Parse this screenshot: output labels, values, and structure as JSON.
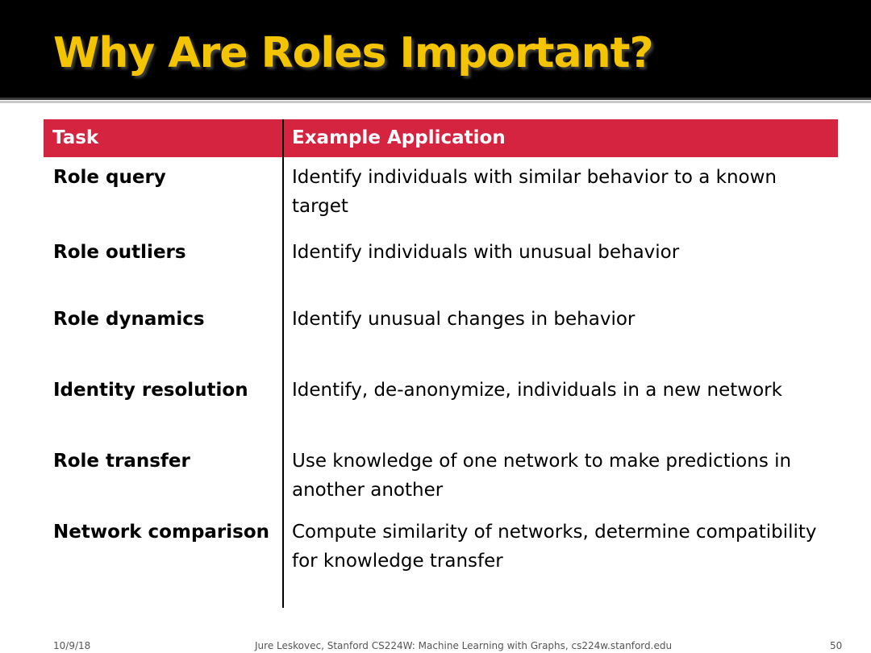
{
  "slide": {
    "title": "Why Are Roles Important?",
    "colors": {
      "title_text": "#f5c400",
      "title_bar": "#000000",
      "table_header": "#d42440"
    }
  },
  "table": {
    "headers": {
      "task": "Task",
      "application": "Example Application"
    },
    "rows": [
      {
        "task": "Role query",
        "application": "Identify individuals with similar behavior to a known target"
      },
      {
        "task": "Role outliers",
        "application": "Identify individuals with unusual behavior"
      },
      {
        "task": "Role dynamics",
        "application": "Identify unusual changes in behavior"
      },
      {
        "task": "Identity resolution",
        "application": "Identify, de-anonymize, individuals in a new network"
      },
      {
        "task": "Role transfer",
        "application": "Use knowledge of one network to make predictions in another another"
      },
      {
        "task": "Network comparison",
        "application": "Compute similarity of networks, determine compatibility for knowledge transfer"
      }
    ]
  },
  "footer": {
    "date": "10/9/18",
    "credit": "Jure Leskovec, Stanford CS224W: Machine Learning with Graphs, cs224w.stanford.edu",
    "page": "50"
  }
}
